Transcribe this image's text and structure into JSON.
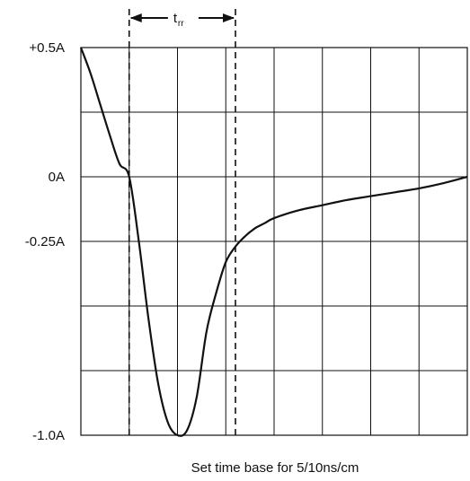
{
  "chart_data": {
    "type": "line",
    "title": "",
    "xlabel": "Set time base for 5/10ns/cm",
    "ylabel": "",
    "ylim": [
      -1.0,
      0.5
    ],
    "xlim": [
      0,
      8
    ],
    "grid": true,
    "y_ticks": [
      {
        "label": "+0.5A",
        "value": 0.5
      },
      {
        "label": "0A",
        "value": 0.0
      },
      {
        "label": "-0.25A",
        "value": -0.25
      },
      {
        "label": "-1.0A",
        "value": -1.0
      }
    ],
    "grid_rows": 6,
    "grid_cols": 8,
    "series": [
      {
        "x": [
          0.0,
          0.2,
          0.4,
          0.6,
          0.8,
          1.0,
          1.2,
          1.4,
          1.6,
          1.8,
          2.0,
          2.2,
          2.4,
          2.6,
          2.8,
          3.0,
          3.2,
          3.4,
          3.6,
          3.8,
          4.0,
          4.5,
          5.0,
          5.5,
          6.0,
          6.5,
          7.0,
          7.5,
          8.0
        ],
        "y": [
          0.5,
          0.4,
          0.28,
          0.16,
          0.05,
          0.0,
          -0.25,
          -0.55,
          -0.8,
          -0.95,
          -1.0,
          -0.98,
          -0.85,
          -0.6,
          -0.45,
          -0.33,
          -0.27,
          -0.23,
          -0.2,
          -0.18,
          -0.16,
          -0.13,
          -0.11,
          -0.09,
          -0.075,
          -0.06,
          -0.045,
          -0.025,
          0.0
        ]
      }
    ],
    "annotation": {
      "text": "t",
      "subscript": "rr",
      "x_start": 1.0,
      "x_end": 3.2
    }
  }
}
